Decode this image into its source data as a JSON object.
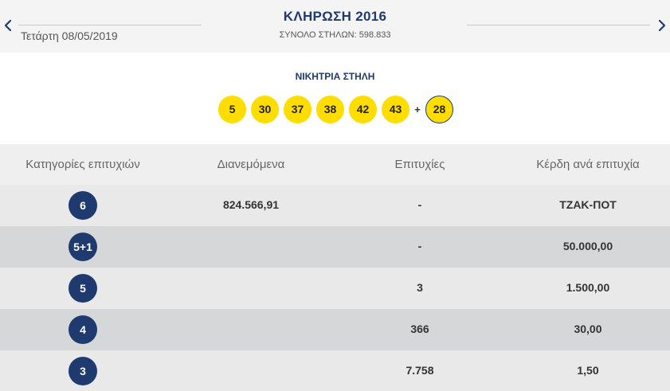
{
  "header": {
    "title": "ΚΛΗΡΩΣΗ 2016",
    "date": "Τετάρτη 08/05/2019",
    "total_columns": "ΣΥΝΟΛΟ ΣΤΗΛΩΝ: 598.833",
    "prev_icon": "chevron-left-icon",
    "next_icon": "chevron-right-icon"
  },
  "winning": {
    "label": "ΝΙΚΗΤΡΙΑ ΣΤΗΛΗ",
    "numbers": [
      "5",
      "30",
      "37",
      "38",
      "42",
      "43"
    ],
    "plus": "+",
    "joker": "28"
  },
  "table": {
    "headers": [
      "Κατηγορίες επιτυχιών",
      "Διανεμόμενα",
      "Επιτυχίες",
      "Κέρδη ανά επιτυχία"
    ],
    "rows": [
      {
        "category": "6",
        "distributed": "824.566,91",
        "winners": "-",
        "prize": "ΤΖΑΚ-ΠΟΤ"
      },
      {
        "category": "5+1",
        "distributed": "",
        "winners": "-",
        "prize": "50.000,00"
      },
      {
        "category": "5",
        "distributed": "",
        "winners": "3",
        "prize": "1.500,00"
      },
      {
        "category": "4",
        "distributed": "",
        "winners": "366",
        "prize": "30,00"
      },
      {
        "category": "3",
        "distributed": "",
        "winners": "7.758",
        "prize": "1,50"
      }
    ]
  },
  "colors": {
    "navy": "#1e3a6e",
    "ball_yellow": "#ffdd00",
    "row_light": "#e9e9ea",
    "row_dark": "#d6d7d9"
  }
}
